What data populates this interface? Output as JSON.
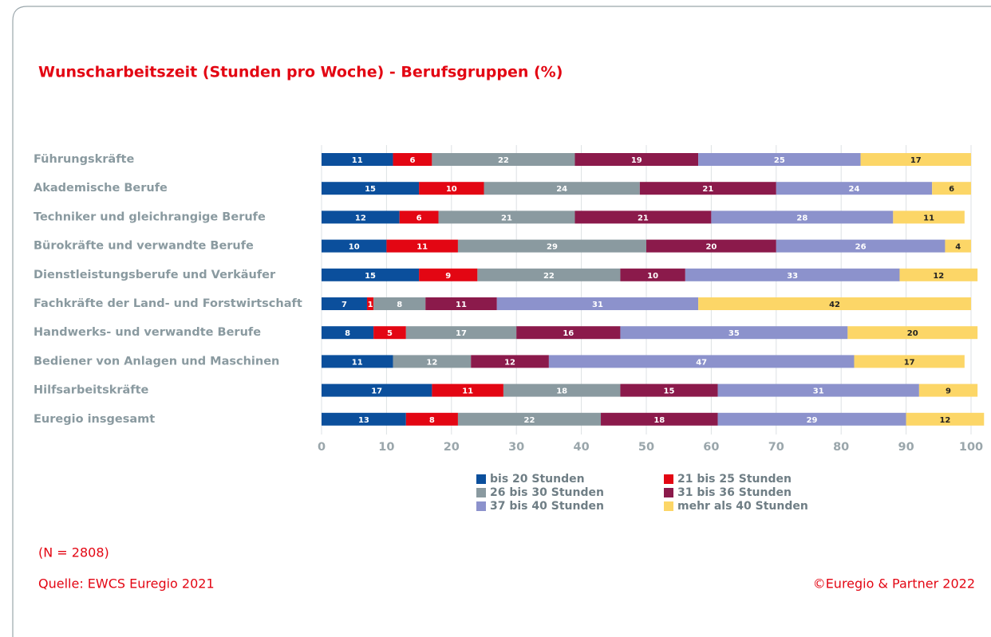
{
  "chart_data": {
    "type": "stacked_bar_horizontal",
    "title": "Wunscharbeitszeit (Stunden pro Woche) - Berufsgruppen (%)",
    "categories": [
      "Führungskräfte",
      "Akademische Berufe",
      "Techniker und gleichrangige Berufe",
      "Bürokräfte und verwandte Berufe",
      "Dienstleistungsberufe und Verkäufer",
      "Fachkräfte der Land- und Forstwirtschaft",
      "Handwerks- und verwandte Berufe",
      "Bediener von Anlagen und Maschinen",
      "Hilfsarbeitskräfte",
      "Euregio insgesamt"
    ],
    "series": [
      {
        "name": "bis 20 Stunden",
        "color": "#0b4f9c",
        "values": [
          11,
          15,
          12,
          10,
          15,
          7,
          8,
          11,
          17,
          13
        ]
      },
      {
        "name": "21 bis 25 Stunden",
        "color": "#e30613",
        "values": [
          6,
          10,
          6,
          11,
          9,
          1,
          5,
          null,
          11,
          8
        ]
      },
      {
        "name": "26 bis 30 Stunden",
        "color": "#8a9aa0",
        "values": [
          22,
          24,
          21,
          29,
          22,
          8,
          17,
          12,
          18,
          22
        ]
      },
      {
        "name": "31 bis 36 Stunden",
        "color": "#8b1a4b",
        "values": [
          19,
          21,
          21,
          20,
          10,
          11,
          16,
          12,
          15,
          18
        ]
      },
      {
        "name": "37 bis 40 Stunden",
        "color": "#8c92cc",
        "values": [
          25,
          24,
          28,
          26,
          33,
          31,
          35,
          47,
          31,
          29
        ]
      },
      {
        "name": "mehr als 40 Stunden",
        "color": "#fcd667",
        "values": [
          17,
          6,
          11,
          4,
          12,
          42,
          20,
          17,
          9,
          12
        ]
      }
    ],
    "xlim": [
      0,
      100
    ],
    "xticks": [
      0,
      10,
      20,
      30,
      40,
      50,
      60,
      70,
      80,
      90,
      100
    ],
    "grid": true,
    "notes": [
      "(N = 2808)",
      "Quelle: EWCS Euregio 2021"
    ],
    "copyright": "©Euregio & Partner 2022"
  }
}
